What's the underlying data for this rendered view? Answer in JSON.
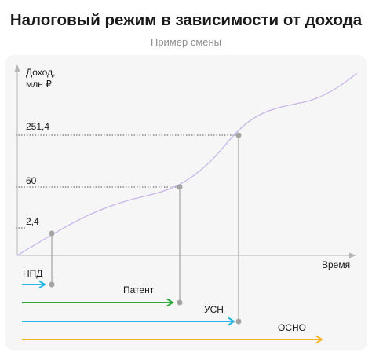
{
  "title": "Налоговый режим в зависимости от дохода",
  "subtitle": "Пример смены",
  "axes": {
    "y_label_line1": "Доход,",
    "y_label_line2": "млн ₽",
    "x_label": "Время"
  },
  "thresholds": [
    "251,4",
    "60",
    "2,4"
  ],
  "regimes": [
    {
      "label": "НПД",
      "color": "#29b6e8"
    },
    {
      "label": "Патент",
      "color": "#2eaa3c"
    },
    {
      "label": "УСН",
      "color": "#29b6e8"
    },
    {
      "label": "ОСНО",
      "color": "#f0b429"
    }
  ],
  "colors": {
    "curve": "#c9b6ea",
    "axis": "#b5b5b5",
    "marker": "#a3a3a3",
    "dotted": "#555555"
  }
}
